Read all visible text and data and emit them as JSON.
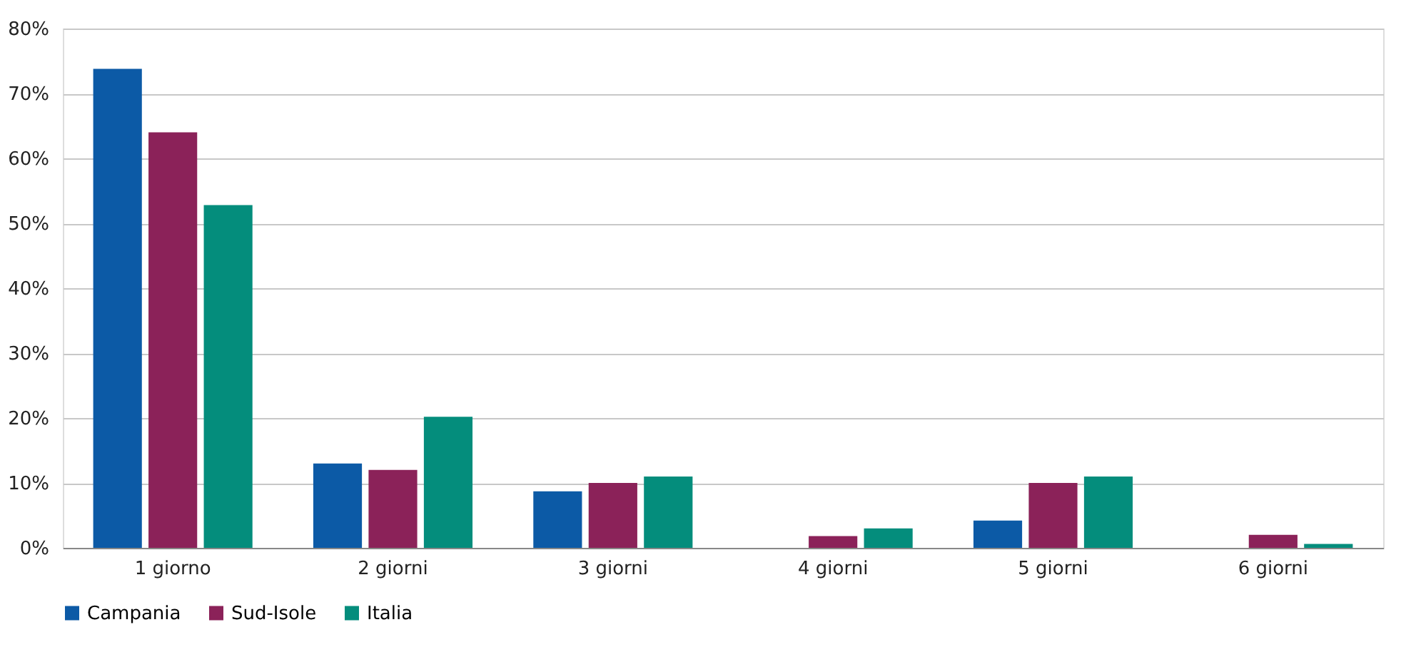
{
  "chart_data": {
    "type": "bar",
    "categories": [
      "1 giorno",
      "2 giorni",
      "3 giorni",
      "4 giorni",
      "5 giorni",
      "6 giorni"
    ],
    "series": [
      {
        "name": "Campania",
        "color": "#0c5aa6",
        "values": [
          73.8,
          13,
          8.7,
          0,
          4.2,
          0
        ]
      },
      {
        "name": "Sud-Isole",
        "color": "#8b2259",
        "values": [
          64,
          12,
          10,
          1.8,
          10,
          2
        ]
      },
      {
        "name": "Italia",
        "color": "#048d7c",
        "values": [
          52.8,
          20.2,
          11,
          3,
          11,
          0.6
        ]
      }
    ],
    "ylim": [
      0,
      80
    ],
    "yticks": [
      {
        "value": 0,
        "label": "0%"
      },
      {
        "value": 10,
        "label": "10%"
      },
      {
        "value": 20,
        "label": "20%"
      },
      {
        "value": 30,
        "label": "30%"
      },
      {
        "value": 40,
        "label": "40%"
      },
      {
        "value": 50,
        "label": "50%"
      },
      {
        "value": 60,
        "label": "60%"
      },
      {
        "value": 70,
        "label": "70%"
      },
      {
        "value": 80,
        "label": "80%"
      }
    ],
    "grid": "y",
    "legend": "bottom"
  }
}
